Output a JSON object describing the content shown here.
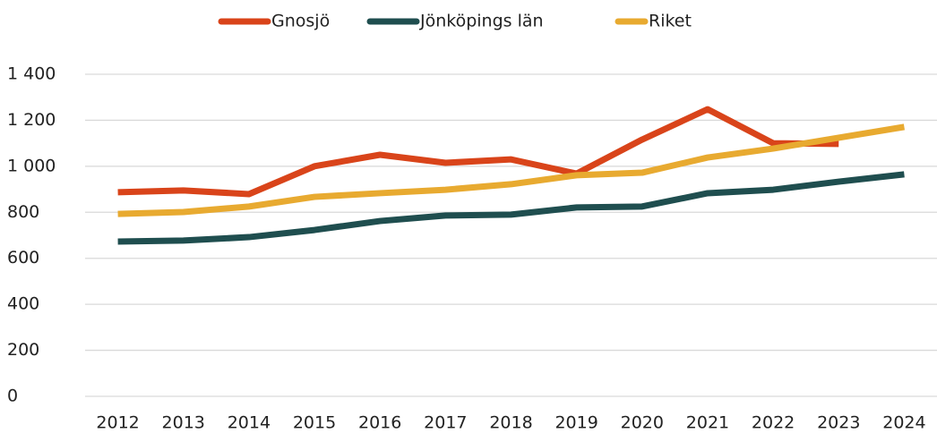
{
  "chart_data": {
    "type": "line",
    "categories": [
      "2012",
      "2013",
      "2014",
      "2015",
      "2016",
      "2017",
      "2018",
      "2019",
      "2020",
      "2021",
      "2022",
      "2023",
      "2024"
    ],
    "series": [
      {
        "name": "Gnosjö",
        "color": "#d9441a",
        "values": [
          887,
          895,
          879,
          1000,
          1050,
          1015,
          1030,
          968,
          1116,
          1248,
          1100,
          1097,
          null
        ]
      },
      {
        "name": "Jönköpings län",
        "color": "#1f4e4f",
        "values": [
          673,
          677,
          692,
          723,
          762,
          786,
          790,
          821,
          825,
          883,
          898,
          933,
          965
        ]
      },
      {
        "name": "Riket",
        "color": "#e8aa30",
        "values": [
          793,
          801,
          825,
          867,
          883,
          898,
          922,
          961,
          972,
          1038,
          1077,
          1124,
          1171
        ]
      }
    ],
    "ylim": [
      0,
      1400
    ],
    "yticks": [
      0,
      200,
      400,
      600,
      800,
      {
        "value": 1000,
        "label": "1 000"
      },
      {
        "value": 1200,
        "label": "1 200"
      },
      {
        "value": 1400,
        "label": "1 400"
      }
    ],
    "grid": true,
    "legend": "top"
  }
}
